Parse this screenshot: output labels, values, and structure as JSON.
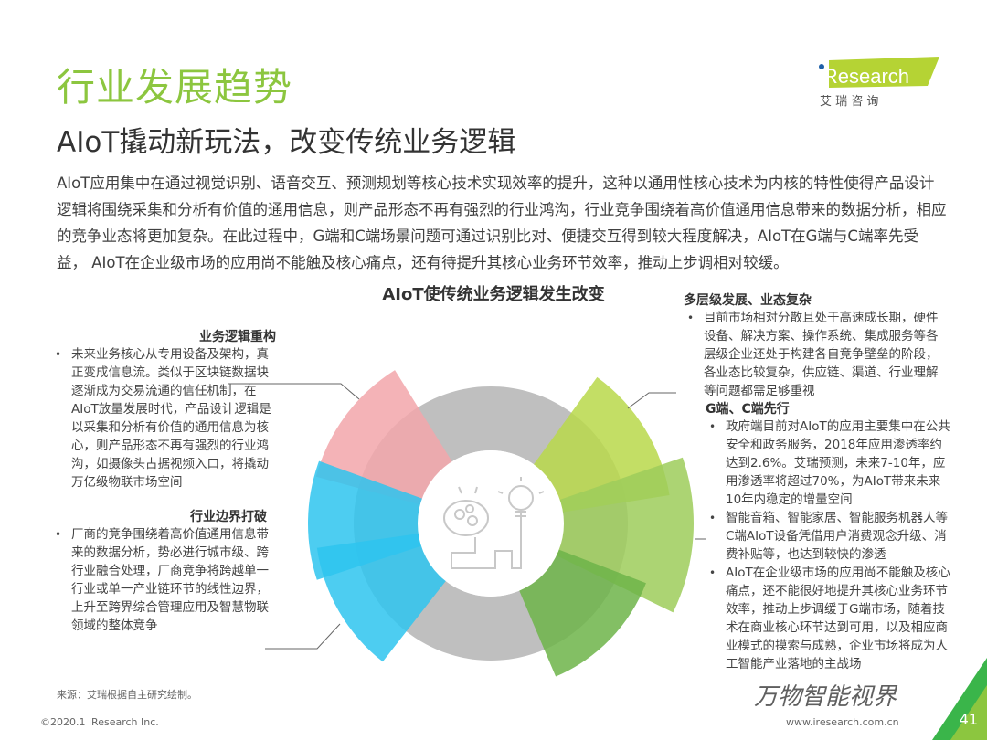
{
  "header": {
    "title": "行业发展趋势",
    "subtitle": "AIoT撬动新玩法，改变传统业务逻辑",
    "logo_text": "iResearch",
    "logo_cn": "艾 瑞 咨 询"
  },
  "intro": "AIoT应用集中在通过视觉识别、语音交互、预测规划等核心技术实现效率的提升，这种以通用性核心技术为内核的特性使得产品设计逻辑将围绕采集和分析有价值的通用信息，则产品形态不再有强烈的行业鸿沟，行业竞争围绕着高价值通用信息带来的数据分析，相应的竞争业态将更加复杂。在此过程中，G端和C端场景问题可通过识别比对、便捷交互得到较大程度解决，AIoT在G端与C端率先受益， AIoT在企业级市场的应用尚不能触及核心痛点，还有待提升其核心业务环节效率，推动上步调相对较缓。",
  "diagram": {
    "title": "AIoT使传统业务逻辑发生改变",
    "colors": {
      "pink": "#f2a6aa",
      "blue": "#2ec4ee",
      "light_green": "#b9d84a",
      "green": "#9dcc5a",
      "dark_green": "#6db449",
      "gray": "#bfbfbf"
    },
    "center_icon": "brain-lightbulb-icon"
  },
  "left_sections": [
    {
      "heading": "业务逻辑重构",
      "bullets": [
        "未来业务核心从专用设备及架构，真正变成信息流。类似于区块链数据块逐渐成为交易流通的信任机制，在AIoT放量发展时代，产品设计逻辑是以采集和分析有价值的通用信息为核心，则产品形态不再有强烈的行业鸿沟，如摄像头占据视频入口，将撬动万亿级物联市场空间"
      ]
    },
    {
      "heading": "行业边界打破",
      "bullets": [
        "厂商的竞争围绕着高价值通用信息带来的数据分析，势必进行城市级、跨行业融合处理，厂商竞争将跨越单一行业或单一产业链环节的线性边界，上升至跨界综合管理应用及智慧物联领域的整体竞争"
      ]
    }
  ],
  "right_sections": [
    {
      "heading": "多层级发展、业态复杂",
      "bullets": [
        "目前市场相对分散且处于高速成长期，硬件设备、解决方案、操作系统、集成服务等各层级企业还处于构建各自竞争壁垒的阶段，各业态比较复杂，供应链、渠道、行业理解等问题都需足够重视"
      ]
    },
    {
      "heading": "G端、C端先行",
      "bullets": [
        "政府端目前对AIoT的应用主要集中在公共安全和政务服务，2018年应用渗透率约达到2.6%。艾瑞预测，未来7-10年，应用渗透率将超过70%，为AIoT带来未来10年内稳定的增量空间",
        "智能音箱、智能家居、智能服务机器人等C端AIoT设备凭借用户消费观念升级、消费补贴等，也达到较快的渗透",
        "AIoT在企业级市场的应用尚不能触及核心痛点，还不能很好地提升其核心业务环节效率，推动上步调缓于G端市场，随着技术在商业核心环节达到可用，以及相应商业模式的摸索与成熟，企业市场将成为人工智能产业落地的主战场"
      ]
    }
  ],
  "footer": {
    "source": "来源：艾瑞根据自主研究绘制。",
    "copyright": "©2020.1 iResearch Inc.",
    "url": "www.iresearch.com.cn",
    "page": "41",
    "watermark": "万物智能视界"
  }
}
